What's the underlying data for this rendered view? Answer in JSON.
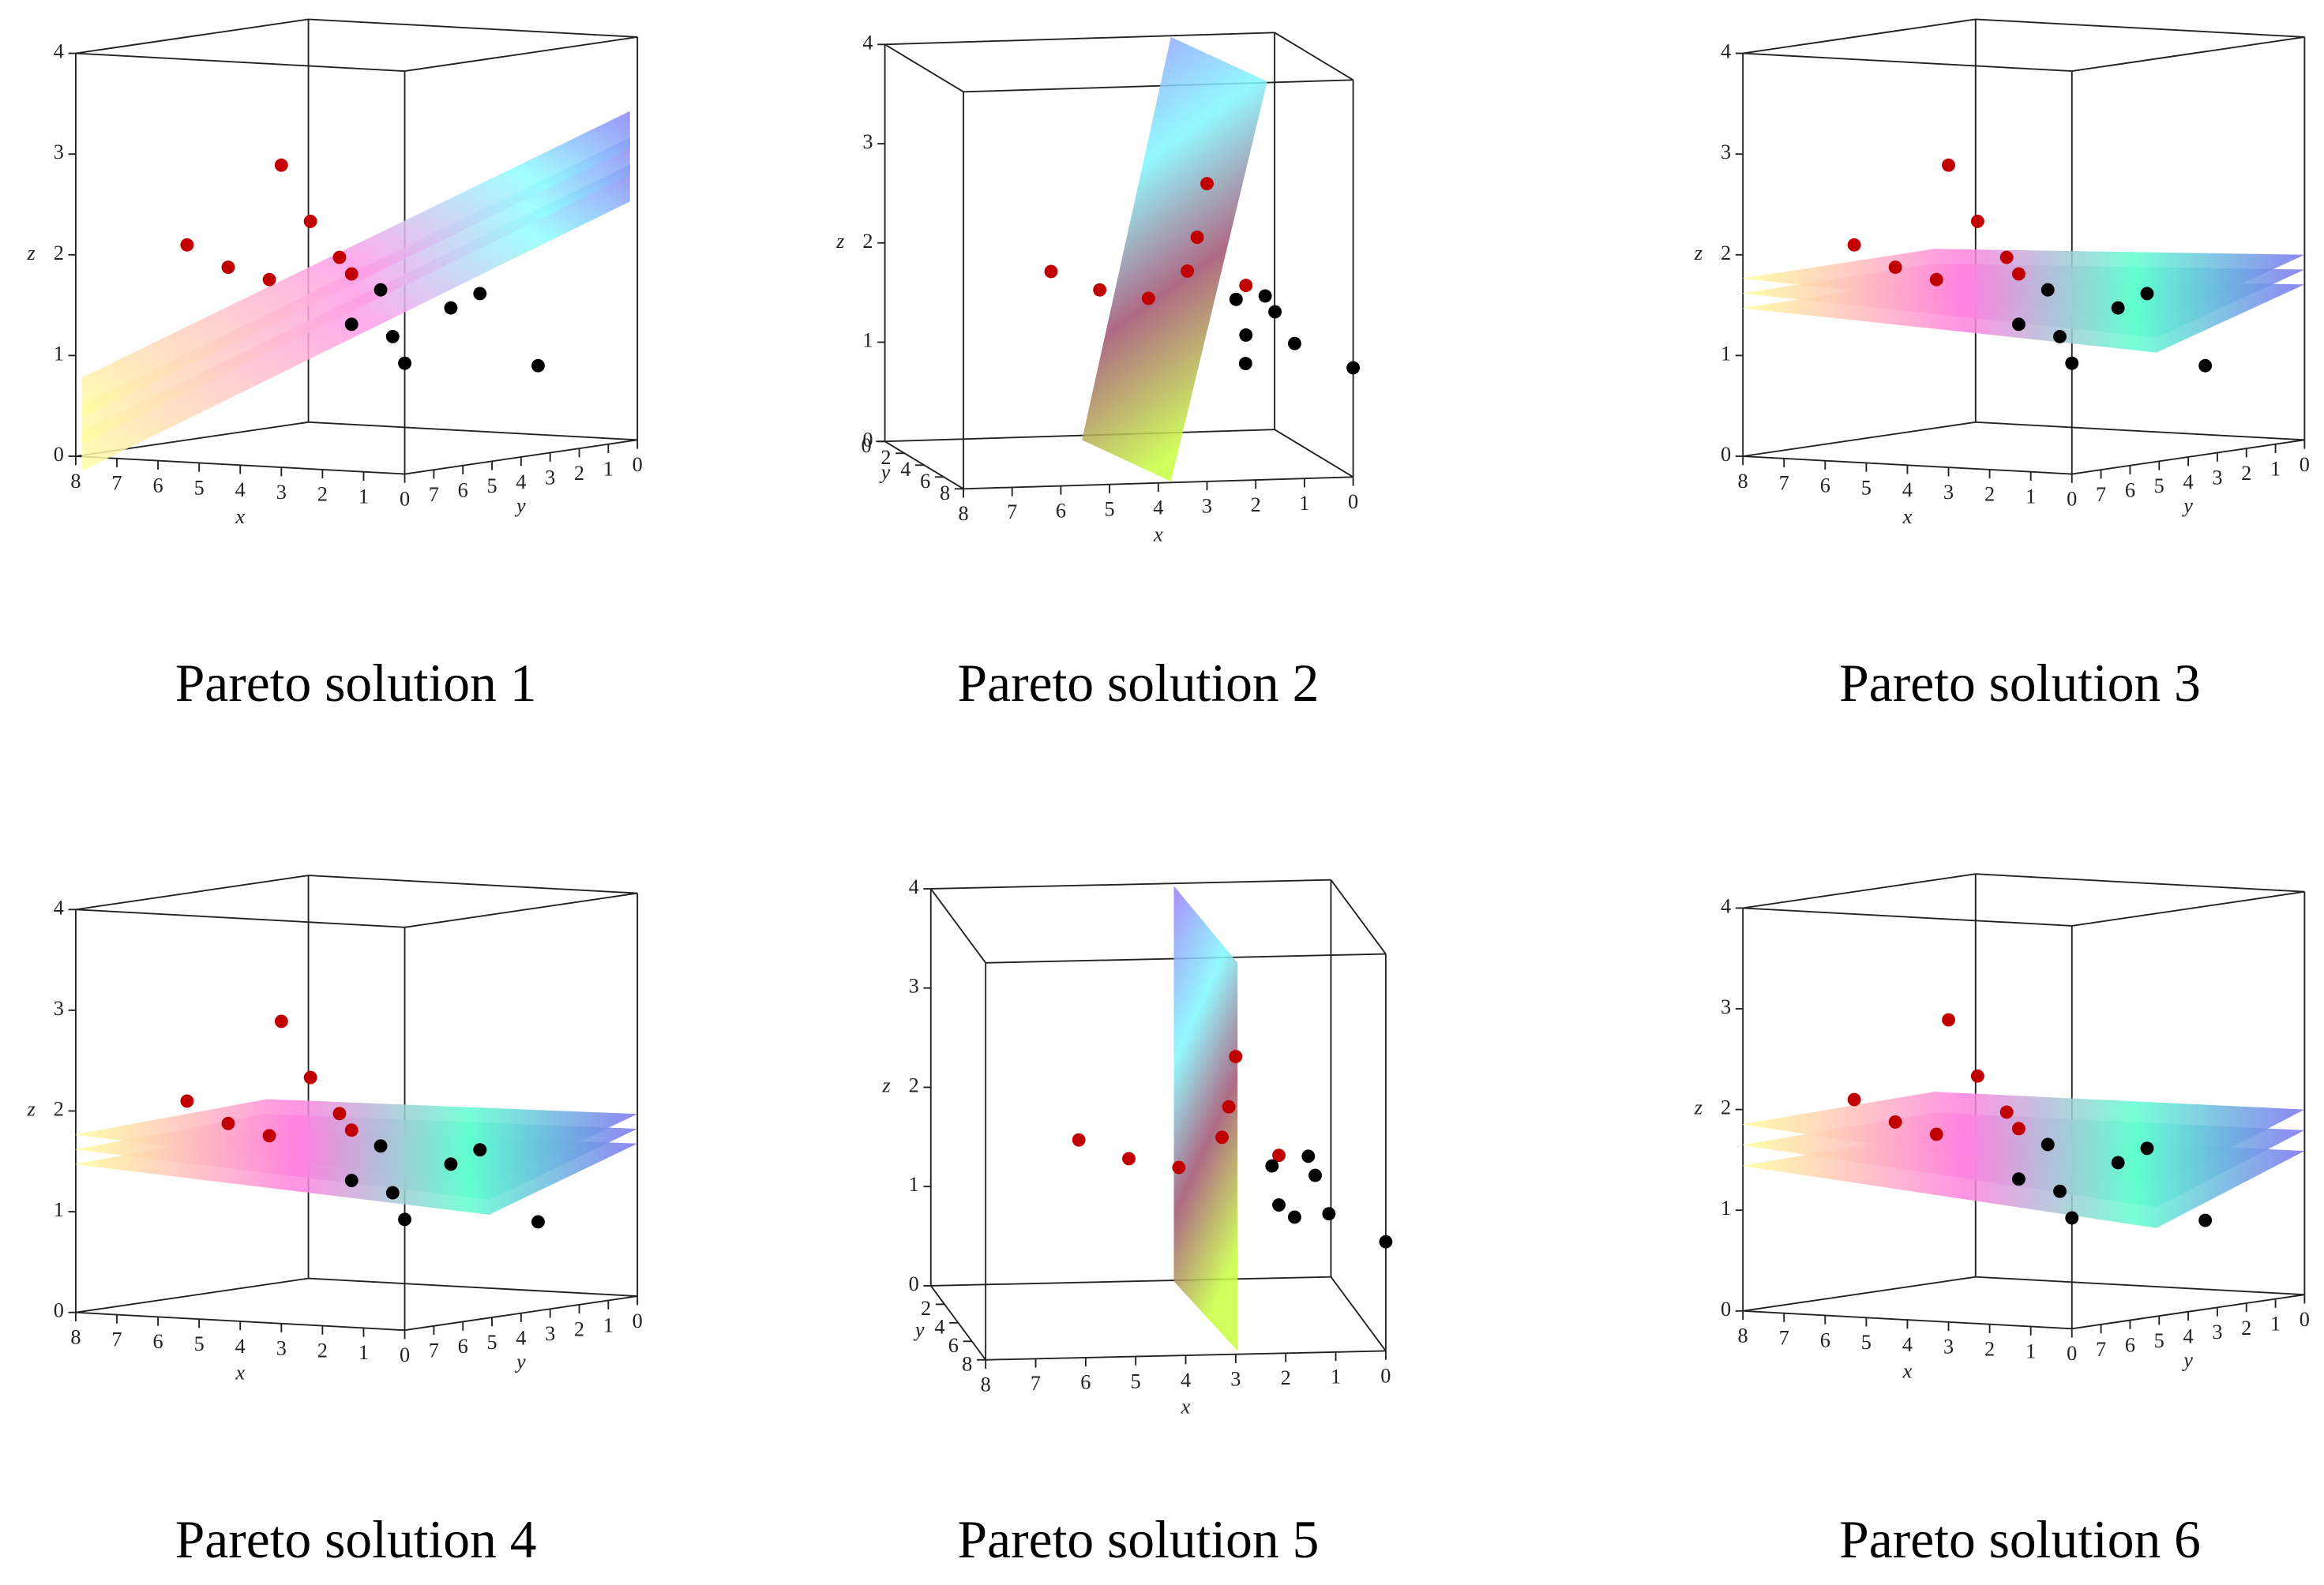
{
  "chart_data": [
    {
      "type": "scatter3d",
      "title": "Pareto solution 1",
      "xlabel": "x",
      "ylabel": "y",
      "zlabel": "z",
      "xlim": [
        0,
        8
      ],
      "ylim": [
        0,
        8
      ],
      "zlim": [
        0,
        4
      ],
      "xticks": [
        0,
        1,
        2,
        3,
        4,
        5,
        6,
        7,
        8
      ],
      "yticks": [
        0,
        1,
        2,
        3,
        4,
        5,
        6,
        7
      ],
      "zticks": [
        0,
        1,
        2,
        3,
        4
      ],
      "series": [
        {
          "color": "#c00000",
          "x": [
            3,
            3,
            6,
            5,
            3,
            2,
            4
          ],
          "y": [
            8,
            7,
            7,
            7,
            6,
            7,
            7
          ],
          "z": [
            3.0,
            2.4,
            2.1,
            1.9,
            2.0,
            1.9,
            1.8
          ]
        },
        {
          "color": "#000000",
          "x": [
            2,
            2,
            1,
            1,
            1,
            0,
            1
          ],
          "y": [
            6,
            7,
            7,
            5,
            4,
            8,
            2
          ],
          "z": [
            1.7,
            1.4,
            1.3,
            1.5,
            1.6,
            1.1,
            0.8
          ]
        }
      ]
    },
    {
      "type": "scatter3d",
      "title": "Pareto solution 2",
      "xlabel": "x",
      "ylabel": "y",
      "zlabel": "z",
      "xlim": [
        0,
        8
      ],
      "ylim": [
        0,
        8
      ],
      "zlim": [
        0,
        4
      ],
      "xticks": [
        0,
        1,
        2,
        3,
        4,
        5,
        6,
        7,
        8
      ],
      "yticks": [
        0,
        2,
        4,
        6,
        8
      ],
      "zticks": [
        0,
        1,
        2,
        3,
        4
      ],
      "series": [
        {
          "color": "#c00000",
          "x": [
            3,
            3,
            6,
            5,
            3,
            2,
            4
          ],
          "y": [
            8,
            7,
            7,
            7,
            6,
            7,
            7
          ],
          "z": [
            3.0,
            2.4,
            2.1,
            1.9,
            2.0,
            1.9,
            1.8
          ]
        },
        {
          "color": "#000000",
          "x": [
            2,
            2,
            1,
            1,
            1,
            0,
            1
          ],
          "y": [
            6,
            7,
            7,
            5,
            4,
            8,
            2
          ],
          "z": [
            1.7,
            1.4,
            1.3,
            1.5,
            1.6,
            1.1,
            0.8
          ]
        }
      ]
    },
    {
      "type": "scatter3d",
      "title": "Pareto solution 3",
      "xlabel": "x",
      "ylabel": "y",
      "zlabel": "z",
      "xlim": [
        0,
        8
      ],
      "ylim": [
        0,
        8
      ],
      "zlim": [
        0,
        4
      ],
      "xticks": [
        0,
        1,
        2,
        3,
        4,
        5,
        6,
        7,
        8
      ],
      "yticks": [
        0,
        1,
        2,
        3,
        4,
        5,
        6,
        7
      ],
      "zticks": [
        0,
        1,
        2,
        3,
        4
      ],
      "series": [
        {
          "color": "#c00000",
          "x": [
            3,
            3,
            6,
            5,
            3,
            2,
            4
          ],
          "y": [
            8,
            7,
            7,
            7,
            6,
            7,
            7
          ],
          "z": [
            3.0,
            2.4,
            2.1,
            1.9,
            2.0,
            1.9,
            1.8
          ]
        },
        {
          "color": "#000000",
          "x": [
            2,
            2,
            1,
            1,
            1,
            0,
            1
          ],
          "y": [
            6,
            7,
            7,
            5,
            4,
            8,
            2
          ],
          "z": [
            1.7,
            1.4,
            1.3,
            1.5,
            1.6,
            1.1,
            0.8
          ]
        }
      ]
    },
    {
      "type": "scatter3d",
      "title": "Pareto solution 4",
      "xlabel": "x",
      "ylabel": "y",
      "zlabel": "z",
      "xlim": [
        0,
        8
      ],
      "ylim": [
        0,
        8
      ],
      "zlim": [
        0,
        4
      ],
      "xticks": [
        0,
        1,
        2,
        3,
        4,
        5,
        6,
        7,
        8
      ],
      "yticks": [
        0,
        1,
        2,
        3,
        4,
        5,
        6,
        7
      ],
      "zticks": [
        0,
        1,
        2,
        3,
        4
      ],
      "series": [
        {
          "color": "#c00000",
          "x": [
            3,
            3,
            6,
            5,
            3,
            2,
            4
          ],
          "y": [
            8,
            7,
            7,
            7,
            6,
            7,
            7
          ],
          "z": [
            3.0,
            2.4,
            2.1,
            1.9,
            2.0,
            1.9,
            1.8
          ]
        },
        {
          "color": "#000000",
          "x": [
            2,
            2,
            1,
            1,
            1,
            0,
            1
          ],
          "y": [
            6,
            7,
            7,
            5,
            4,
            8,
            2
          ],
          "z": [
            1.7,
            1.4,
            1.3,
            1.5,
            1.6,
            1.1,
            0.8
          ]
        }
      ]
    },
    {
      "type": "scatter3d",
      "title": "Pareto solution 5",
      "xlabel": "x",
      "ylabel": "y",
      "zlabel": "z",
      "xlim": [
        0,
        8
      ],
      "ylim": [
        0,
        8
      ],
      "zlim": [
        0,
        4
      ],
      "xticks": [
        0,
        1,
        2,
        3,
        4,
        5,
        6,
        7,
        8
      ],
      "yticks": [
        2,
        4,
        6,
        8
      ],
      "zticks": [
        0,
        1,
        2,
        3,
        4
      ],
      "series": [
        {
          "color": "#c00000",
          "x": [
            3,
            3,
            6,
            5,
            3,
            2,
            4
          ],
          "y": [
            8,
            7,
            7,
            7,
            6,
            7,
            7
          ],
          "z": [
            3.0,
            2.4,
            2.1,
            1.9,
            2.0,
            1.9,
            1.8
          ]
        },
        {
          "color": "#000000",
          "x": [
            2,
            2,
            1,
            1,
            1,
            0,
            1
          ],
          "y": [
            6,
            7,
            7,
            5,
            4,
            8,
            2
          ],
          "z": [
            1.7,
            1.4,
            1.3,
            1.5,
            1.6,
            1.1,
            0.8
          ]
        }
      ]
    },
    {
      "type": "scatter3d",
      "title": "Pareto solution 6",
      "xlabel": "x",
      "ylabel": "y",
      "zlabel": "z",
      "xlim": [
        0,
        8
      ],
      "ylim": [
        0,
        8
      ],
      "zlim": [
        0,
        4
      ],
      "xticks": [
        0,
        1,
        2,
        3,
        4,
        5,
        6,
        7,
        8
      ],
      "yticks": [
        0,
        1,
        2,
        3,
        4,
        5,
        6,
        7
      ],
      "zticks": [
        0,
        1,
        2,
        3,
        4
      ],
      "series": [
        {
          "color": "#c00000",
          "x": [
            3,
            3,
            6,
            5,
            3,
            2,
            4
          ],
          "y": [
            8,
            7,
            7,
            7,
            6,
            7,
            7
          ],
          "z": [
            3.0,
            2.4,
            2.1,
            1.9,
            2.0,
            1.9,
            1.8
          ]
        },
        {
          "color": "#000000",
          "x": [
            2,
            2,
            1,
            1,
            1,
            0,
            1
          ],
          "y": [
            6,
            7,
            7,
            5,
            4,
            8,
            2
          ],
          "z": [
            1.7,
            1.4,
            1.3,
            1.5,
            1.6,
            1.1,
            0.8
          ]
        }
      ]
    }
  ]
}
